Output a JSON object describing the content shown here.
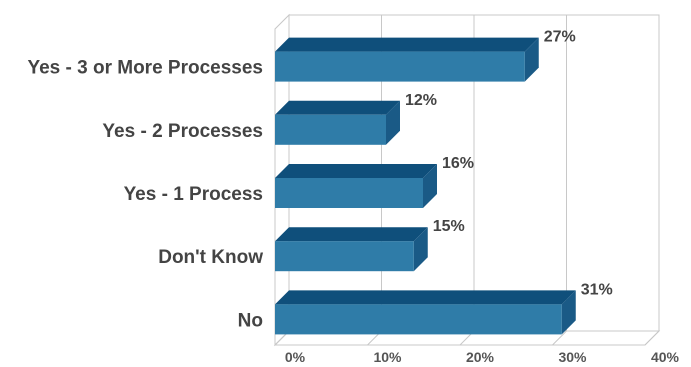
{
  "chart_data": {
    "type": "bar",
    "orientation": "horizontal",
    "style": "3d",
    "categories": [
      "Yes - 3 or More Processes",
      "Yes - 2 Processes",
      "Yes - 1 Process",
      "Don't Know",
      "No"
    ],
    "values": [
      27,
      12,
      16,
      15,
      31
    ],
    "value_labels": [
      "27%",
      "12%",
      "16%",
      "15%",
      "31%"
    ],
    "xlim": [
      0,
      40
    ],
    "x_ticks": [
      0,
      10,
      20,
      30,
      40
    ],
    "x_tick_labels": [
      "0%",
      "10%",
      "20%",
      "30%",
      "40%"
    ],
    "grid": true,
    "legend": "none",
    "colors": {
      "bar_front": "#2f7ca8",
      "bar_top": "#0f4f7b",
      "bar_side": "#1a5a86",
      "grid": "#c8c8c8"
    }
  }
}
